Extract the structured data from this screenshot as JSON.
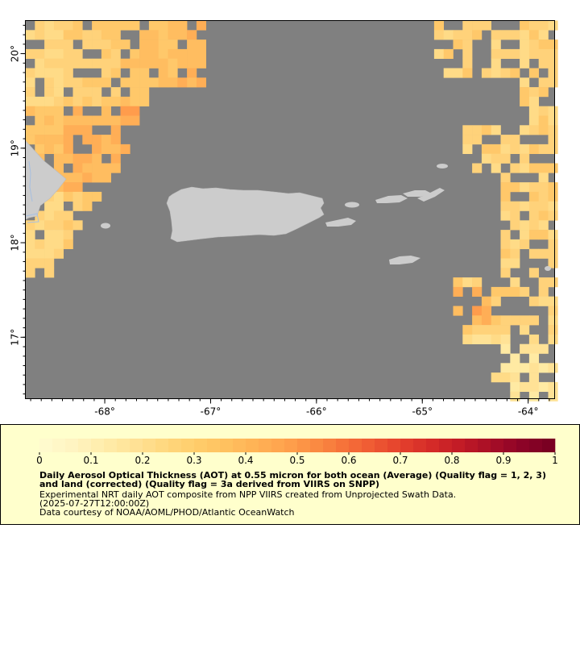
{
  "map": {
    "lon_range": [
      -68.75,
      -63.75
    ],
    "lat_range": [
      16.35,
      20.35
    ],
    "lon_ticks": [
      {
        "value": -68,
        "label": "-68°"
      },
      {
        "value": -67,
        "label": "-67°"
      },
      {
        "value": -66,
        "label": "-66°"
      },
      {
        "value": -65,
        "label": "-65°"
      },
      {
        "value": -64,
        "label": "-64°"
      }
    ],
    "lat_ticks": [
      {
        "value": 20,
        "label": "20°"
      },
      {
        "value": 19,
        "label": "19°"
      },
      {
        "value": 18,
        "label": "18°"
      },
      {
        "value": 17,
        "label": "17°"
      }
    ],
    "colors": {
      "nodata": "#808080",
      "land": "#cccccc",
      "land_edge": "#bcbcbc",
      "river": "#a7bfe0"
    }
  },
  "legend": {
    "tick_labels": [
      "0",
      "0.1",
      "0.2",
      "0.3",
      "0.4",
      "0.5",
      "0.6",
      "0.7",
      "0.8",
      "0.9",
      "1"
    ],
    "range": [
      0,
      1
    ],
    "colors": [
      "#fffacd",
      "#fff3c0",
      "#ffeca9",
      "#ffe296",
      "#ffd87f",
      "#ffce6c",
      "#ffc260",
      "#ffb456",
      "#ffa44e",
      "#fb8e43",
      "#f6743a",
      "#ef5a33",
      "#e4412d",
      "#d52b28",
      "#c21b26",
      "#a90f26",
      "#8f0428",
      "#7a0022"
    ],
    "title": "Daily Aerosol Optical Thickness (AOT) at 0.55 micron for both ocean (Average) (Quality flag = 1, 2, 3) and land (corrected) (Quality flag = 3a derived from VIIRS on SNPP)",
    "line1": "Experimental NRT daily AOT composite from NPP VIIRS created from Unprojected Swath Data.",
    "line2": "(2025-07-27T12:00:00Z)",
    "line3": "Data courtesy of NOAA/AOML/PHOD/Atlantic OceanWatch"
  }
}
